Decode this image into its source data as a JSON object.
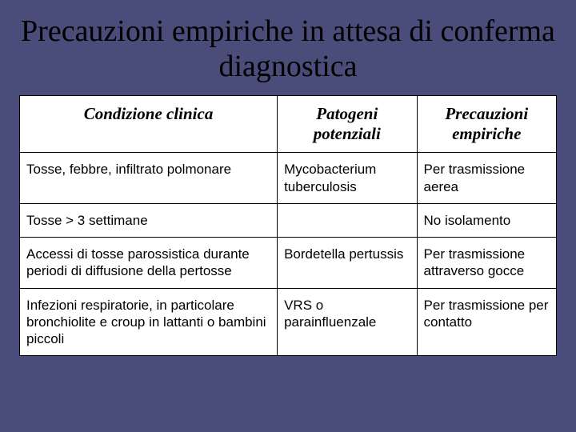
{
  "title": "Precauzioni empiriche in attesa di conferma diagnostica",
  "table": {
    "columns": [
      "Condizione clinica",
      "Patogeni potenziali",
      "Precauzioni empiriche"
    ],
    "rows": [
      [
        "Tosse, febbre, infiltrato polmonare",
        "Mycobacterium tuberculosis",
        "Per trasmissione aerea"
      ],
      [
        "Tosse > 3 settimane",
        "",
        "No isolamento"
      ],
      [
        "Accessi di tosse parossistica durante periodi di diffusione della pertosse",
        "Bordetella pertussis",
        "Per trasmissione attraverso gocce"
      ],
      [
        "Infezioni respiratorie, in particolare bronchiolite e croup in lattanti o bambini piccoli",
        "VRS o parainfluenzale",
        "Per trasmissione per contatto"
      ]
    ],
    "col_widths_pct": [
      48,
      26,
      26
    ],
    "header_font": {
      "family": "Times New Roman",
      "italic": true,
      "bold": true,
      "size_pt": 21
    },
    "body_font": {
      "family": "Arial",
      "size_pt": 17
    },
    "border_color": "#000000",
    "background_color": "#ffffff"
  },
  "slide_background": "#4a4d7a",
  "title_font": {
    "family": "Times New Roman",
    "size_pt": 38,
    "color": "#000000"
  }
}
